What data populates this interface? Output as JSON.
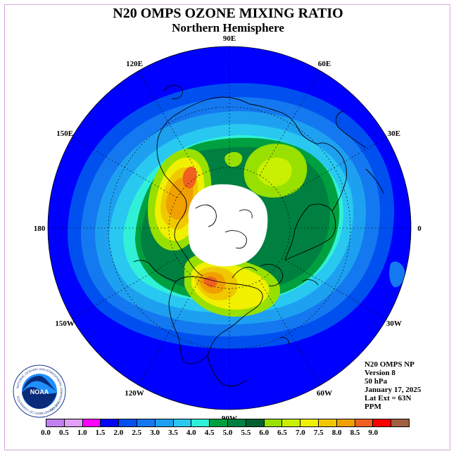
{
  "title": "N20 OMPS OZONE MIXING RATIO",
  "subtitle": "Northern Hemisphere",
  "longitude_labels": [
    "90E",
    "60E",
    "30E",
    "0",
    "30W",
    "60W",
    "90W",
    "120W",
    "150W",
    "180",
    "150E",
    "120E"
  ],
  "info": {
    "instrument": "N20 OMPS NP",
    "version": "Version 8",
    "level": "50 hPa",
    "date": "January 17, 2025",
    "lat_ext": "Lat Ext = 63N",
    "units": "PPM"
  },
  "logo": {
    "name": "NOAA",
    "ring_text": "NATIONAL OCEANIC AND ATMOSPHERIC ADMINISTRATION",
    "dept_text": "U.S. DEPARTMENT OF COMMERCE"
  },
  "colorbar": {
    "ticks": [
      "0.0",
      "0.5",
      "1.0",
      "1.5",
      "2.0",
      "2.5",
      "3.0",
      "3.5",
      "4.0",
      "4.5",
      "5.0",
      "5.5",
      "6.0",
      "6.5",
      "7.0",
      "7.5",
      "8.0",
      "8.5",
      "9.0"
    ],
    "colors": [
      "#c080f0",
      "#e0a0f8",
      "#ff00ff",
      "#0000ff",
      "#0050f0",
      "#1478f0",
      "#1ea0f0",
      "#28c8f0",
      "#30f0d8",
      "#00a040",
      "#008040",
      "#006030",
      "#98e000",
      "#c8f000",
      "#f0f000",
      "#f0c800",
      "#f0a000",
      "#f06020",
      "#ff0000",
      "#a06040"
    ]
  },
  "colors": {
    "background_ozone": "#0000ff",
    "polar_night": "#ffffff",
    "frame": "#d9a6e0"
  }
}
